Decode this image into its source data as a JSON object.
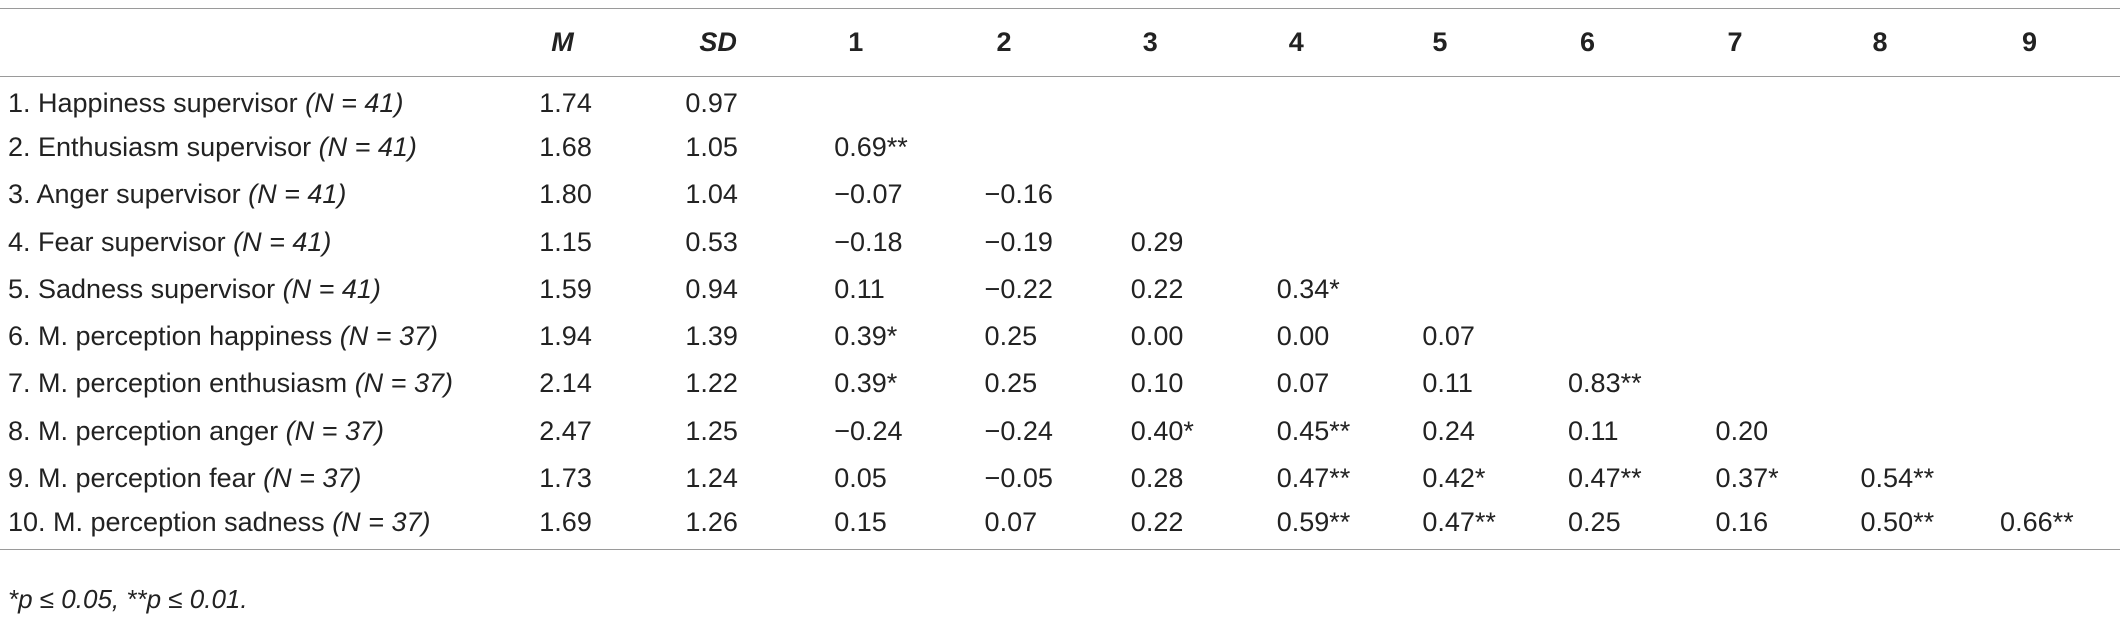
{
  "table": {
    "headers": [
      "",
      "M",
      "SD",
      "1",
      "2",
      "3",
      "4",
      "5",
      "6",
      "7",
      "8",
      "9"
    ],
    "rows": [
      {
        "label": "1. Happiness supervisor ",
        "n": "(N = 41)",
        "cells": [
          "1.74",
          "0.97",
          "",
          "",
          "",
          "",
          "",
          "",
          "",
          "",
          ""
        ]
      },
      {
        "label": "2. Enthusiasm supervisor ",
        "n": "(N = 41)",
        "cells": [
          "1.68",
          "1.05",
          "0.69**",
          "",
          "",
          "",
          "",
          "",
          "",
          "",
          ""
        ]
      },
      {
        "label": "3. Anger supervisor ",
        "n": "(N = 41)",
        "cells": [
          "1.80",
          "1.04",
          "−0.07",
          "−0.16",
          "",
          "",
          "",
          "",
          "",
          "",
          ""
        ]
      },
      {
        "label": "4. Fear supervisor ",
        "n": "(N = 41)",
        "cells": [
          "1.15",
          "0.53",
          "−0.18",
          "−0.19",
          "0.29",
          "",
          "",
          "",
          "",
          "",
          ""
        ]
      },
      {
        "label": "5. Sadness supervisor ",
        "n": "(N = 41)",
        "cells": [
          "1.59",
          "0.94",
          "0.11",
          "−0.22",
          "0.22",
          "0.34*",
          "",
          "",
          "",
          "",
          ""
        ]
      },
      {
        "label": "6. M. perception happiness ",
        "n": "(N = 37)",
        "cells": [
          "1.94",
          "1.39",
          "0.39*",
          "0.25",
          "0.00",
          "0.00",
          "0.07",
          "",
          "",
          "",
          ""
        ]
      },
      {
        "label": "7. M. perception enthusiasm ",
        "n": "(N = 37)",
        "cells": [
          "2.14",
          "1.22",
          "0.39*",
          "0.25",
          "0.10",
          "0.07",
          "0.11",
          "0.83**",
          "",
          "",
          ""
        ]
      },
      {
        "label": "8. M. perception anger ",
        "n": "(N = 37)",
        "cells": [
          "2.47",
          "1.25",
          "−0.24",
          "−0.24",
          "0.40*",
          "0.45**",
          "0.24",
          "0.11",
          "0.20",
          "",
          ""
        ]
      },
      {
        "label": "9. M. perception fear ",
        "n": "(N = 37)",
        "cells": [
          "1.73",
          "1.24",
          "0.05",
          "−0.05",
          "0.28",
          "0.47**",
          "0.42*",
          "0.47**",
          "0.37*",
          "0.54**",
          ""
        ]
      },
      {
        "label": "10. M. perception sadness ",
        "n": "(N = 37)",
        "cells": [
          "1.69",
          "1.26",
          "0.15",
          "0.07",
          "0.22",
          "0.59**",
          "0.47**",
          "0.25",
          "0.16",
          "0.50**",
          "0.66**"
        ]
      }
    ]
  },
  "footnote": "*p ≤ 0.05, **p ≤ 0.01."
}
